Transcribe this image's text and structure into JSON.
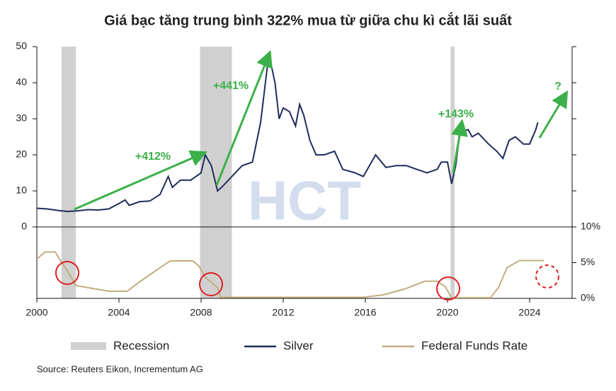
{
  "chart_data": {
    "type": "line",
    "title": "Giá bạc tăng trung bình 322% mua từ giữa chu kì cắt lãi suất",
    "source": "Source: Reuters Eikon, Incrementum AG",
    "watermark": "HCT",
    "annotations": [
      "+412%",
      "+441%",
      "+143%",
      "?"
    ],
    "recession_label": "Recession",
    "recession_color": "#d0d0d0",
    "recessions": [
      [
        2001.2,
        2001.9
      ],
      [
        2007.95,
        2009.5
      ],
      [
        2020.15,
        2020.35
      ]
    ],
    "xlim": [
      2000,
      2026
    ],
    "xticks": [
      2000,
      2004,
      2008,
      2012,
      2016,
      2020,
      2024
    ],
    "ylim": [
      0,
      50
    ],
    "yticks": [
      0,
      10,
      20,
      30,
      40,
      50
    ],
    "y2lim": [
      0,
      10
    ],
    "y2ticks": [
      {
        "value": 0,
        "label": "0%"
      },
      {
        "value": 5,
        "label": "5%"
      },
      {
        "value": 10,
        "label": "10%"
      }
    ],
    "series": [
      {
        "name": "Silver",
        "color": "#1f2d5c",
        "x": [
          2000,
          2000.5,
          2001,
          2001.5,
          2002,
          2002.5,
          2003,
          2003.5,
          2004,
          2004.3,
          2004.5,
          2005,
          2005.5,
          2006,
          2006.4,
          2006.6,
          2007,
          2007.5,
          2008,
          2008.2,
          2008.5,
          2008.8,
          2009,
          2009.5,
          2010,
          2010.5,
          2010.9,
          2011.3,
          2011.6,
          2011.8,
          2012,
          2012.3,
          2012.6,
          2012.8,
          2013,
          2013.3,
          2013.6,
          2014,
          2014.5,
          2014.9,
          2015.5,
          2015.9,
          2016.5,
          2017,
          2017.5,
          2018,
          2018.5,
          2019,
          2019.5,
          2019.7,
          2020,
          2020.2,
          2020.4,
          2020.6,
          2021,
          2021.2,
          2021.5,
          2022,
          2022.4,
          2022.7,
          2023,
          2023.3,
          2023.7,
          2024,
          2024.3,
          2024.4
        ],
        "values": [
          5.2,
          5.0,
          4.6,
          4.3,
          4.5,
          4.8,
          4.7,
          5.0,
          6.5,
          7.5,
          6.0,
          7.0,
          7.2,
          9.0,
          14,
          11,
          13,
          13,
          15,
          20,
          17,
          10,
          11,
          14,
          17,
          18,
          29,
          48,
          40,
          30,
          33,
          32,
          28,
          34,
          31,
          24,
          20,
          20,
          21,
          16,
          15,
          14,
          20,
          16.5,
          17,
          17,
          16,
          15,
          16,
          18,
          18,
          12,
          17,
          26,
          27,
          25,
          26,
          23,
          21,
          19,
          24,
          25,
          23,
          23,
          27,
          29
        ]
      },
      {
        "name": "Federal Funds Rate",
        "color": "#c2ad7f",
        "axis": "y2",
        "x": [
          2000,
          2000.4,
          2000.9,
          2001.1,
          2001.5,
          2001.9,
          2002.9,
          2003.5,
          2004.4,
          2005,
          2006,
          2006.5,
          2007.6,
          2007.9,
          2008.2,
          2008.8,
          2008.95,
          2015.9,
          2016.9,
          2017.9,
          2018.9,
          2019.5,
          2019.9,
          2020.2,
          2022.1,
          2022.5,
          2022.9,
          2023.5,
          2024.7
        ],
        "values": [
          5.5,
          6.5,
          6.5,
          5.5,
          3.8,
          1.8,
          1.3,
          1.0,
          1.0,
          2.3,
          4.3,
          5.25,
          5.25,
          4.5,
          3.0,
          1.5,
          0.15,
          0.15,
          0.5,
          1.3,
          2.4,
          2.4,
          1.6,
          0.1,
          0.1,
          1.6,
          4.3,
          5.3,
          5.3
        ]
      }
    ]
  }
}
